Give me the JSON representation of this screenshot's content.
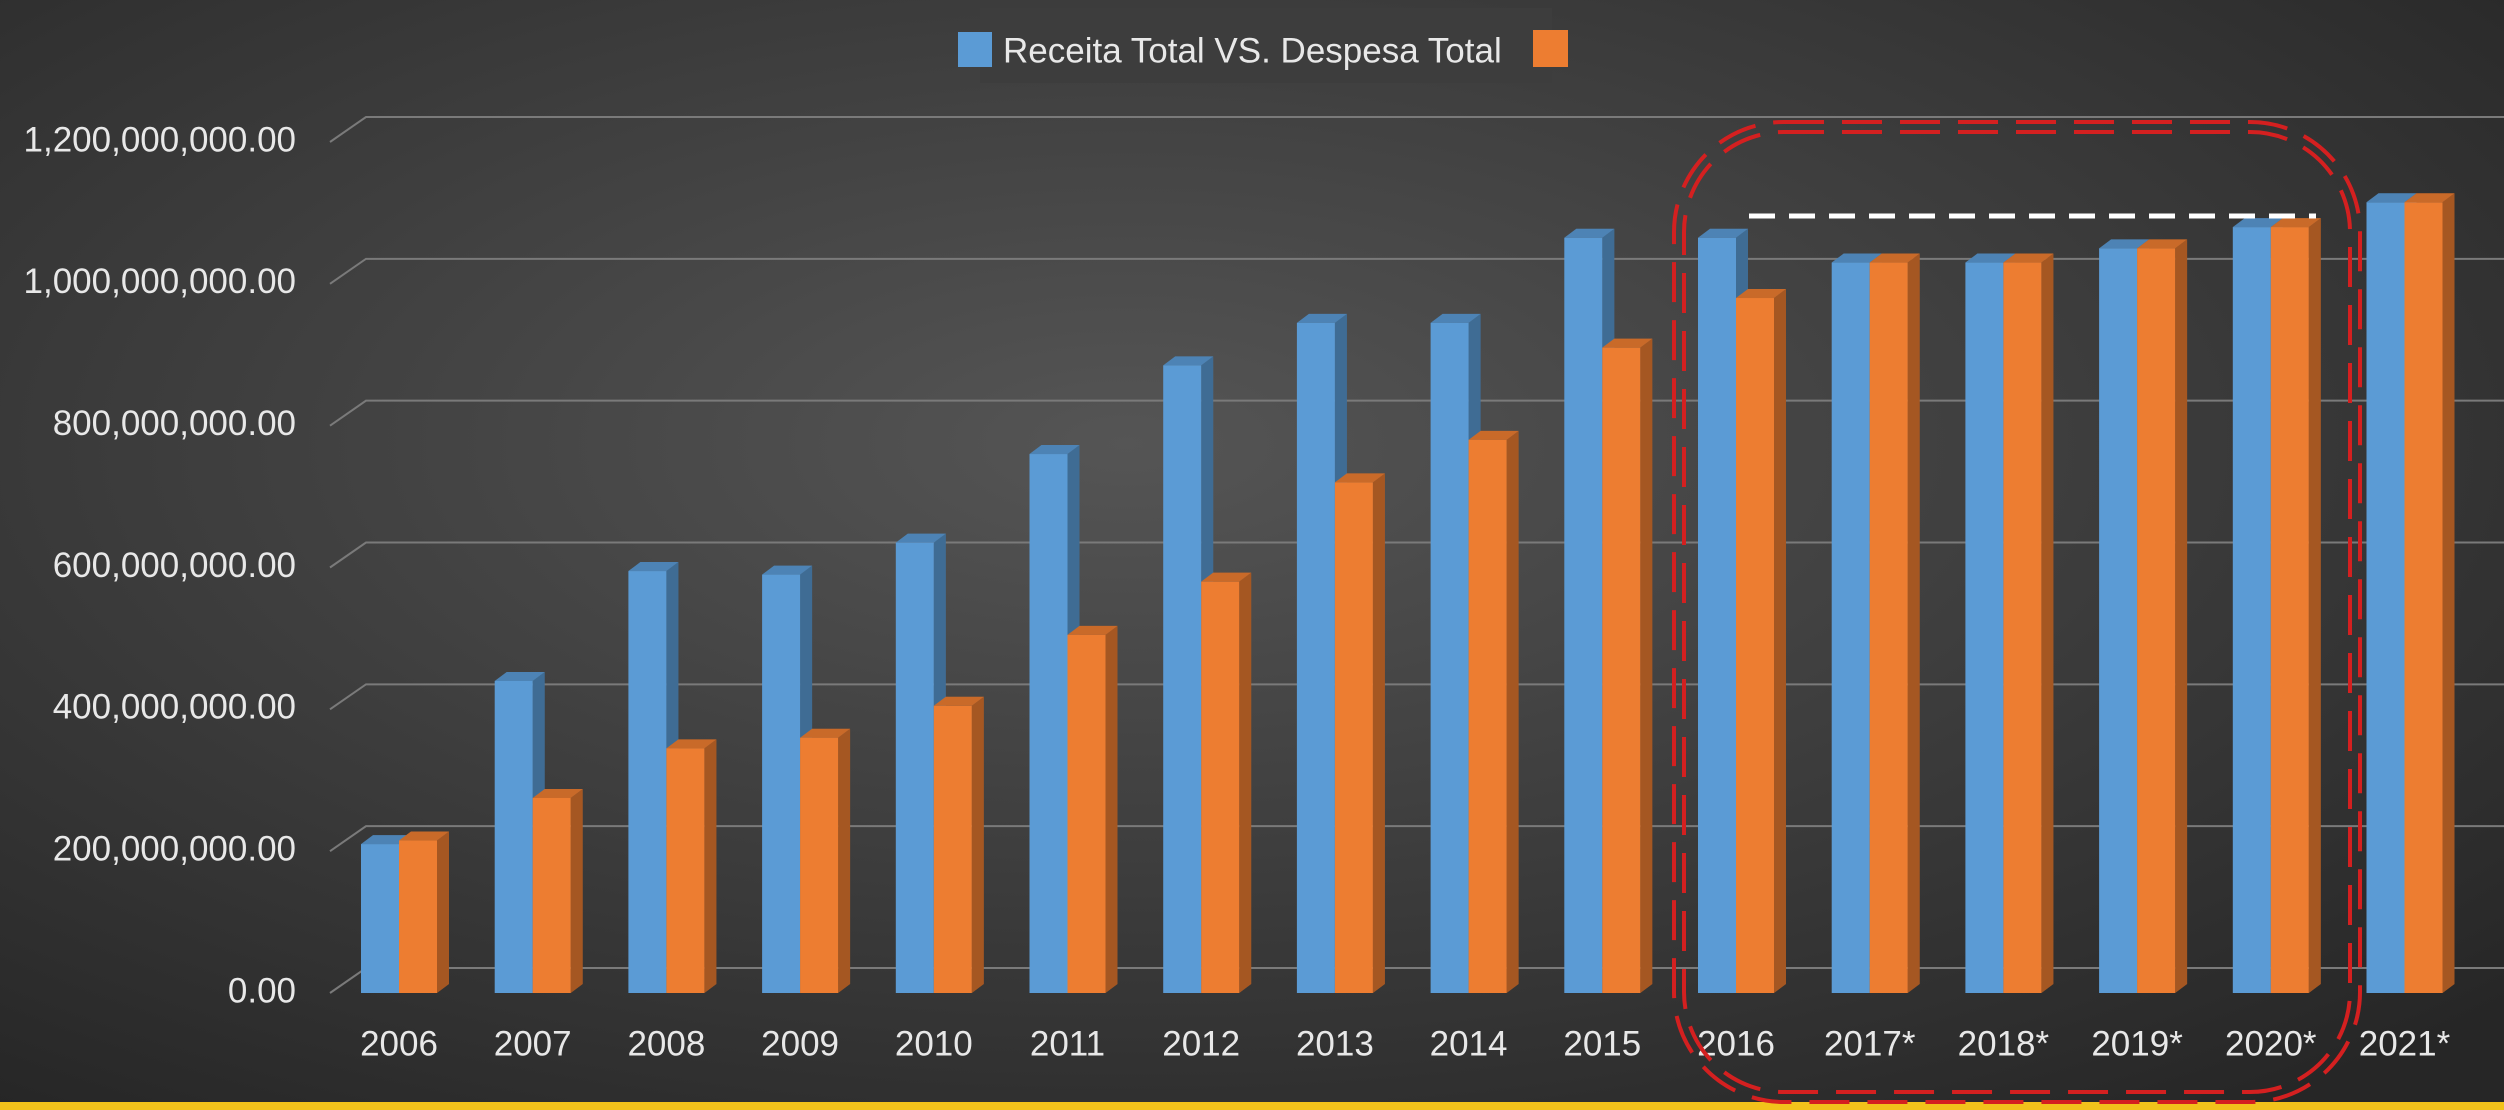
{
  "chart_data": {
    "type": "bar3d",
    "title": "Receita Total VS. Despesa Total",
    "categories": [
      "2006",
      "2007",
      "2008",
      "2009",
      "2010",
      "2011",
      "2012",
      "2013",
      "2014",
      "2015",
      "2016",
      "2017*",
      "2018*",
      "2019*",
      "2020*",
      "2021*"
    ],
    "series": [
      {
        "color": "#5b9bd5",
        "values": [
          210000000,
          440000000,
          595000000,
          590000000,
          635000000,
          760000000,
          885000000,
          945000000,
          945000000,
          1065000000,
          1065000000,
          1030000000,
          1030000000,
          1050000000,
          1080000000,
          1115000000
        ]
      },
      {
        "color": "#ed7d31",
        "values": [
          215000000,
          275000000,
          345000000,
          360000000,
          405000000,
          505000000,
          580000000,
          720000000,
          780000000,
          910000000,
          980000000,
          1030000000,
          1030000000,
          1050000000,
          1080000000,
          1115000000
        ]
      }
    ],
    "ylim": [
      0,
      1200000000
    ],
    "yticks": [
      {
        "value": 0,
        "label": "0.00"
      },
      {
        "value": 200000000,
        "label": "200,000,000.00"
      },
      {
        "value": 400000000,
        "label": "400,000,000.00"
      },
      {
        "value": 600000000,
        "label": "600,000,000.00"
      },
      {
        "value": 800000000,
        "label": "800,000,000.00"
      },
      {
        "value": 1000000000,
        "label": "1,000,000,000.00"
      },
      {
        "value": 1200000000,
        "label": "1,200,000,000.00"
      }
    ],
    "grid": true
  }
}
